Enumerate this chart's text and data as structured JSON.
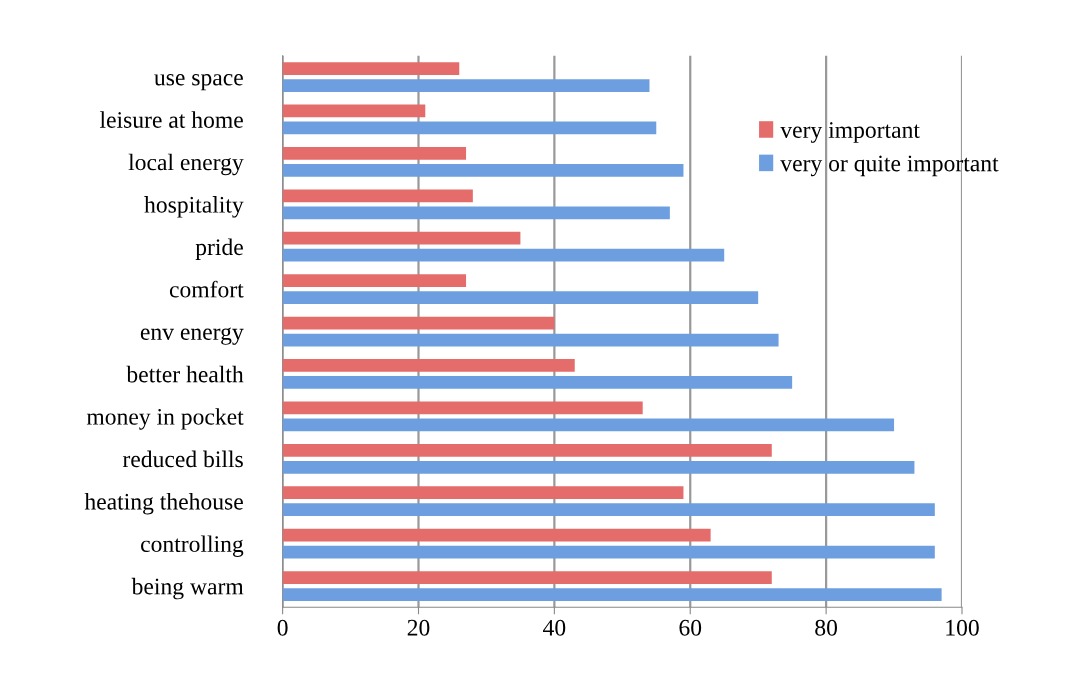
{
  "chart_data": {
    "type": "bar",
    "orientation": "horizontal",
    "categories": [
      "use space",
      "leisure at home",
      "local energy",
      "hospitality",
      "pride",
      "comfort",
      "env energy",
      "better health",
      "money in pocket",
      "reduced bills",
      "heating thehouse",
      "controlling",
      "being warm"
    ],
    "series": [
      {
        "name": "very important",
        "color": "#e46c6a",
        "values": [
          26,
          21,
          27,
          28,
          35,
          27,
          40,
          43,
          53,
          72,
          59,
          63,
          72
        ]
      },
      {
        "name": "very or quite important",
        "color": "#6d9fe0",
        "values": [
          54,
          55,
          59,
          57,
          65,
          70,
          73,
          75,
          90,
          93,
          96,
          96,
          97
        ]
      }
    ],
    "xlim": [
      0,
      100
    ],
    "xticks": [
      0,
      20,
      40,
      60,
      80,
      100
    ],
    "grid": "x",
    "legend": "top right"
  }
}
